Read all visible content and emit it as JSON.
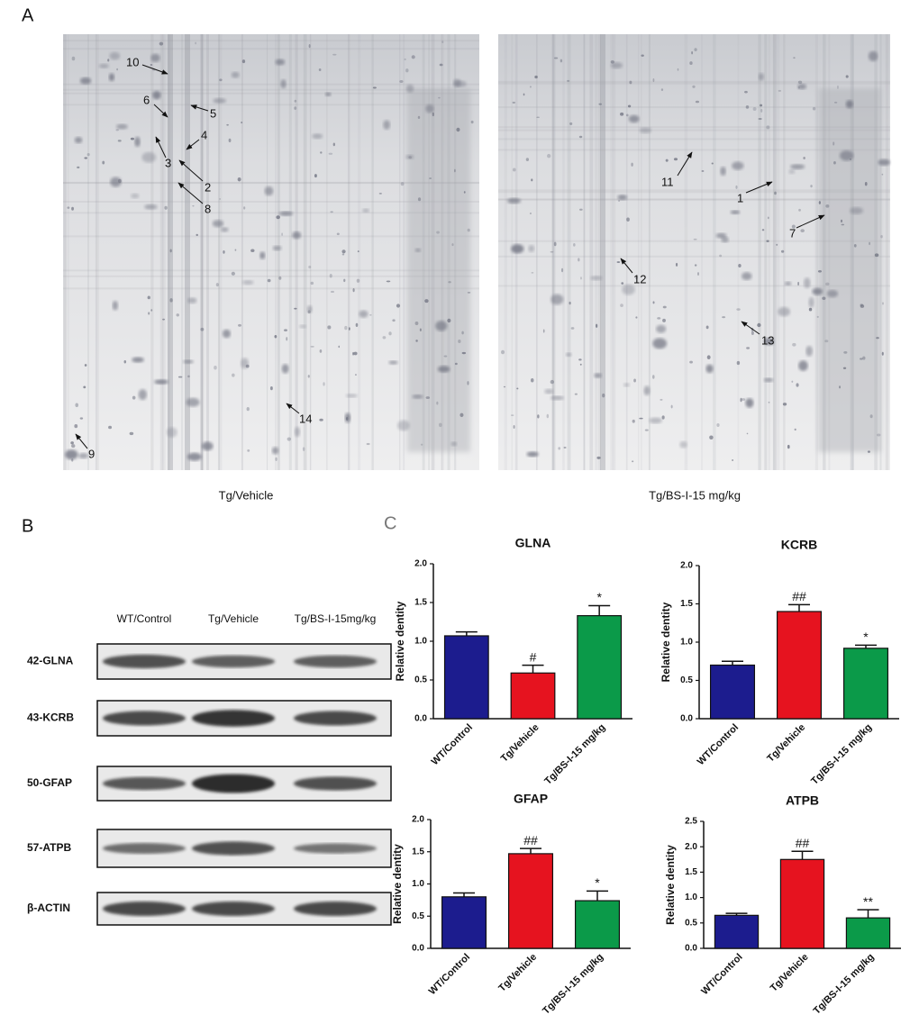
{
  "panels": {
    "a": "A",
    "b": "B",
    "c": "C"
  },
  "gels": [
    {
      "caption": "Tg/Vehicle",
      "spots": [
        "10",
        "6",
        "5",
        "4",
        "3",
        "2",
        "8",
        "9",
        "14"
      ]
    },
    {
      "caption": "Tg/BS-I-15 mg/kg",
      "spots": [
        "11",
        "1",
        "7",
        "12",
        "13"
      ]
    }
  ],
  "blot": {
    "columns": [
      "WT/Control",
      "Tg/Vehicle",
      "Tg/BS-I-15mg/kg"
    ],
    "rows": [
      "42-GLNA",
      "43-KCRB",
      "50-GFAP",
      "57-ATPB",
      "β-ACTIN"
    ]
  },
  "chart_data": [
    {
      "type": "bar",
      "title": "GLNA",
      "y_label": "Relative dentity",
      "categories": [
        "WT/Control",
        "Tg/Vehicle",
        "Tg/BS-I-15 mg/kg"
      ],
      "values": [
        1.07,
        0.59,
        1.33
      ],
      "errors": [
        0.05,
        0.1,
        0.13
      ],
      "significance": [
        null,
        "#",
        "*"
      ],
      "colors": [
        "#1c1c8e",
        "#e6131f",
        "#0b9a49"
      ],
      "ylim": [
        0,
        2
      ],
      "yticks": [
        {
          "value": 0,
          "label": "0.0"
        },
        {
          "value": 0.5,
          "label": "0.5"
        },
        {
          "value": 1,
          "label": "1.0"
        },
        {
          "value": 1.5,
          "label": "1.5"
        },
        {
          "value": 2,
          "label": "2.0"
        }
      ]
    },
    {
      "type": "bar",
      "title": "KCRB",
      "y_label": "Relative dentity",
      "categories": [
        "WT/Control",
        "Tg/Vehicle",
        "Tg/BS-I-15 mg/kg"
      ],
      "values": [
        0.7,
        1.4,
        0.92
      ],
      "errors": [
        0.05,
        0.09,
        0.04
      ],
      "significance": [
        null,
        "##",
        "*"
      ],
      "colors": [
        "#1c1c8e",
        "#e6131f",
        "#0b9a49"
      ],
      "ylim": [
        0,
        2
      ],
      "yticks": [
        {
          "value": 0,
          "label": "0.0"
        },
        {
          "value": 0.5,
          "label": "0.5"
        },
        {
          "value": 1,
          "label": "1.0"
        },
        {
          "value": 1.5,
          "label": "1.5"
        },
        {
          "value": 2,
          "label": "2.0"
        }
      ]
    },
    {
      "type": "bar",
      "title": "GFAP",
      "y_label": "Relative dentity",
      "categories": [
        "WT/Control",
        "Tg/Vehicle",
        "Tg/BS-I-15 mg/kg"
      ],
      "values": [
        0.8,
        1.47,
        0.74
      ],
      "errors": [
        0.06,
        0.08,
        0.15
      ],
      "significance": [
        null,
        "##",
        "*"
      ],
      "colors": [
        "#1c1c8e",
        "#e6131f",
        "#0b9a49"
      ],
      "ylim": [
        0,
        2
      ],
      "yticks": [
        {
          "value": 0,
          "label": "0.0"
        },
        {
          "value": 0.5,
          "label": "0.5"
        },
        {
          "value": 1,
          "label": "1.0"
        },
        {
          "value": 1.5,
          "label": "1.5"
        },
        {
          "value": 2,
          "label": "2.0"
        }
      ]
    },
    {
      "type": "bar",
      "title": "ATPB",
      "y_label": "Relative dentity",
      "categories": [
        "WT/Control",
        "Tg/Vehicle",
        "Tg/BS-I-15 mg/kg"
      ],
      "values": [
        0.65,
        1.75,
        0.6
      ],
      "errors": [
        0.04,
        0.16,
        0.16
      ],
      "significance": [
        null,
        "##",
        "**"
      ],
      "colors": [
        "#1c1c8e",
        "#e6131f",
        "#0b9a49"
      ],
      "ylim": [
        0,
        2.5
      ],
      "yticks": [
        {
          "value": 0,
          "label": "0.0"
        },
        {
          "value": 0.5,
          "label": "0.5"
        },
        {
          "value": 1,
          "label": "1.0"
        },
        {
          "value": 1.5,
          "label": "1.5"
        },
        {
          "value": 2,
          "label": "2.0"
        },
        {
          "value": 2.5,
          "label": "2.5"
        }
      ]
    }
  ]
}
